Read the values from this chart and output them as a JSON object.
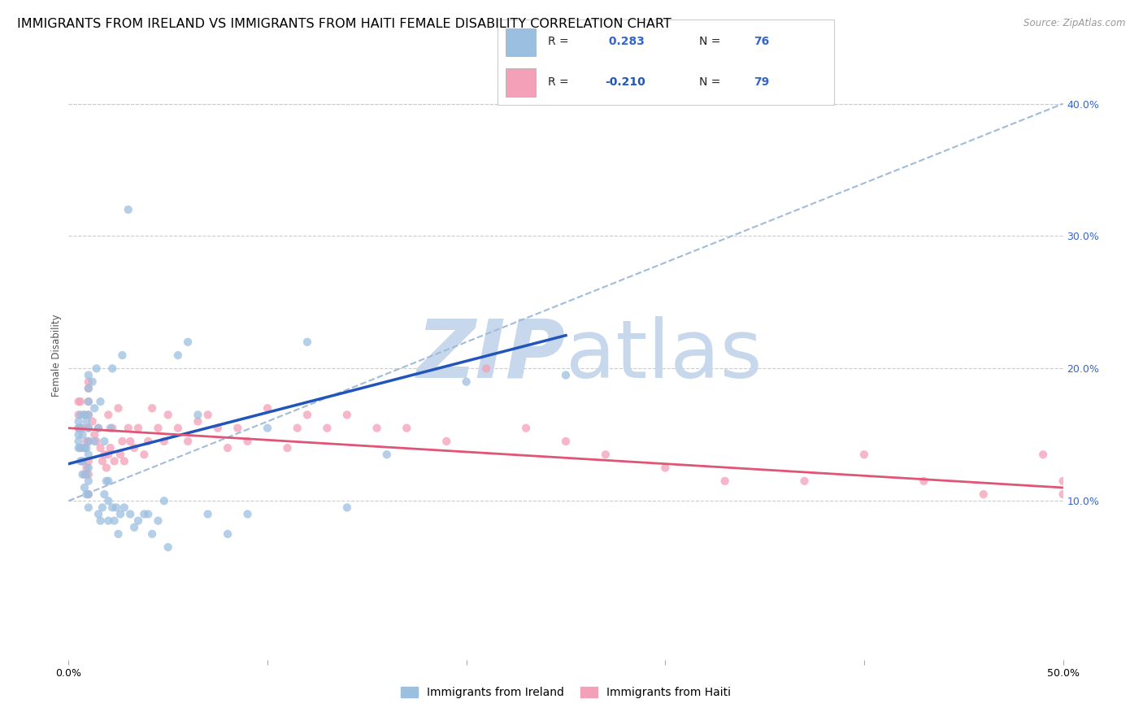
{
  "title": "IMMIGRANTS FROM IRELAND VS IMMIGRANTS FROM HAITI FEMALE DISABILITY CORRELATION CHART",
  "source": "Source: ZipAtlas.com",
  "ylabel": "Female Disability",
  "xlim": [
    0.0,
    0.5
  ],
  "ylim": [
    -0.02,
    0.44
  ],
  "plot_ylim": [
    0.0,
    0.44
  ],
  "ireland_color": "#9bbfe0",
  "haiti_color": "#f4a0b8",
  "ireland_line_color": "#2255bb",
  "haiti_line_color": "#e05575",
  "dashed_line_color": "#a0bcd8",
  "ireland_R": 0.283,
  "ireland_N": 76,
  "haiti_R": -0.21,
  "haiti_N": 79,
  "ireland_scatter_x": [
    0.005,
    0.005,
    0.005,
    0.005,
    0.005,
    0.006,
    0.006,
    0.006,
    0.006,
    0.007,
    0.007,
    0.007,
    0.008,
    0.008,
    0.008,
    0.009,
    0.009,
    0.009,
    0.009,
    0.01,
    0.01,
    0.01,
    0.01,
    0.01,
    0.01,
    0.01,
    0.01,
    0.01,
    0.01,
    0.01,
    0.012,
    0.013,
    0.013,
    0.014,
    0.015,
    0.015,
    0.016,
    0.016,
    0.017,
    0.018,
    0.018,
    0.019,
    0.02,
    0.02,
    0.02,
    0.021,
    0.022,
    0.022,
    0.023,
    0.024,
    0.025,
    0.026,
    0.027,
    0.028,
    0.03,
    0.031,
    0.033,
    0.035,
    0.038,
    0.04,
    0.042,
    0.045,
    0.048,
    0.05,
    0.055,
    0.06,
    0.065,
    0.07,
    0.08,
    0.09,
    0.1,
    0.12,
    0.14,
    0.16,
    0.2,
    0.25
  ],
  "ireland_scatter_y": [
    0.14,
    0.145,
    0.15,
    0.155,
    0.16,
    0.13,
    0.14,
    0.155,
    0.165,
    0.12,
    0.13,
    0.15,
    0.11,
    0.14,
    0.165,
    0.105,
    0.12,
    0.14,
    0.16,
    0.095,
    0.105,
    0.115,
    0.125,
    0.135,
    0.145,
    0.155,
    0.165,
    0.175,
    0.185,
    0.195,
    0.19,
    0.145,
    0.17,
    0.2,
    0.09,
    0.155,
    0.085,
    0.175,
    0.095,
    0.105,
    0.145,
    0.115,
    0.085,
    0.1,
    0.115,
    0.155,
    0.095,
    0.2,
    0.085,
    0.095,
    0.075,
    0.09,
    0.21,
    0.095,
    0.32,
    0.09,
    0.08,
    0.085,
    0.09,
    0.09,
    0.075,
    0.085,
    0.1,
    0.065,
    0.21,
    0.22,
    0.165,
    0.09,
    0.075,
    0.09,
    0.155,
    0.22,
    0.095,
    0.135,
    0.19,
    0.195
  ],
  "haiti_scatter_x": [
    0.005,
    0.005,
    0.005,
    0.006,
    0.006,
    0.006,
    0.007,
    0.007,
    0.008,
    0.008,
    0.008,
    0.009,
    0.009,
    0.01,
    0.01,
    0.01,
    0.01,
    0.01,
    0.01,
    0.01,
    0.01,
    0.01,
    0.012,
    0.013,
    0.014,
    0.015,
    0.016,
    0.017,
    0.018,
    0.019,
    0.02,
    0.02,
    0.021,
    0.022,
    0.023,
    0.025,
    0.026,
    0.027,
    0.028,
    0.03,
    0.031,
    0.033,
    0.035,
    0.038,
    0.04,
    0.042,
    0.045,
    0.048,
    0.05,
    0.055,
    0.06,
    0.065,
    0.07,
    0.075,
    0.08,
    0.085,
    0.09,
    0.1,
    0.11,
    0.115,
    0.12,
    0.13,
    0.14,
    0.155,
    0.17,
    0.19,
    0.21,
    0.23,
    0.25,
    0.27,
    0.3,
    0.33,
    0.37,
    0.4,
    0.43,
    0.46,
    0.49,
    0.5,
    0.5
  ],
  "haiti_scatter_y": [
    0.155,
    0.165,
    0.175,
    0.14,
    0.155,
    0.175,
    0.13,
    0.155,
    0.12,
    0.14,
    0.165,
    0.125,
    0.145,
    0.105,
    0.12,
    0.13,
    0.145,
    0.155,
    0.165,
    0.175,
    0.185,
    0.19,
    0.16,
    0.15,
    0.145,
    0.155,
    0.14,
    0.13,
    0.135,
    0.125,
    0.135,
    0.165,
    0.14,
    0.155,
    0.13,
    0.17,
    0.135,
    0.145,
    0.13,
    0.155,
    0.145,
    0.14,
    0.155,
    0.135,
    0.145,
    0.17,
    0.155,
    0.145,
    0.165,
    0.155,
    0.145,
    0.16,
    0.165,
    0.155,
    0.14,
    0.155,
    0.145,
    0.17,
    0.14,
    0.155,
    0.165,
    0.155,
    0.165,
    0.155,
    0.155,
    0.145,
    0.2,
    0.155,
    0.145,
    0.135,
    0.125,
    0.115,
    0.115,
    0.135,
    0.115,
    0.105,
    0.135,
    0.105,
    0.115
  ],
  "watermark_zip": "ZIP",
  "watermark_atlas": "atlas",
  "watermark_color": "#c8d8ec",
  "legend_ireland_label": "Immigrants from Ireland",
  "legend_haiti_label": "Immigrants from Haiti",
  "title_fontsize": 11.5,
  "axis_label_fontsize": 8.5,
  "tick_fontsize": 9,
  "legend_fontsize": 10,
  "right_tick_color": "#3366cc"
}
